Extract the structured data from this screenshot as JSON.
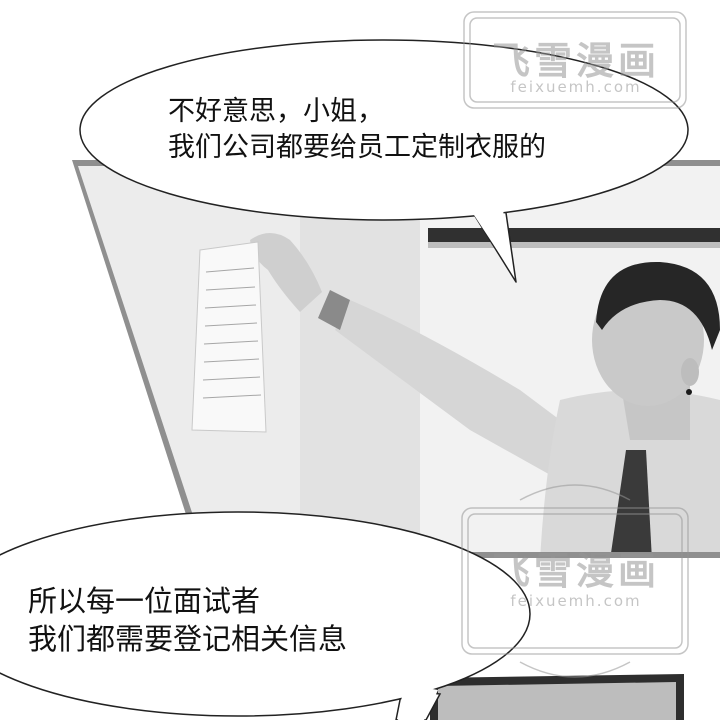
{
  "bubble_top": {
    "line1": "不好意思，小姐，",
    "line2": "我们公司都要给员工定制衣服的"
  },
  "bubble_bottom": {
    "line1": "所以每一位面试者",
    "line2": "我们都需要登记相关信息"
  },
  "watermark": {
    "brand": "飞雪漫画",
    "url": "feixuemh.com"
  },
  "colors": {
    "panel_border": "#8f8f8f",
    "wall": "#ececec",
    "shirt": "#d9d9d9",
    "hair": "#262626"
  }
}
